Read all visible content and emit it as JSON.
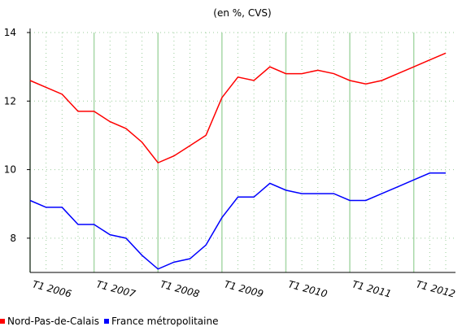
{
  "chart_data": {
    "type": "line",
    "title": "(en %, CVS)",
    "categories": [
      "T1 2006",
      null,
      null,
      null,
      "T1 2007",
      null,
      null,
      null,
      "T1 2008",
      null,
      null,
      null,
      "T1 2009",
      null,
      null,
      null,
      "T1 2010",
      null,
      null,
      null,
      "T1 2011",
      null,
      null,
      null,
      "T1 2012",
      null,
      null
    ],
    "series": [
      {
        "name": "Nord-Pas-de-Calais",
        "color": "#ff0000",
        "values": [
          12.6,
          12.4,
          12.2,
          11.7,
          11.7,
          11.4,
          11.2,
          10.8,
          10.2,
          10.4,
          10.7,
          11.0,
          12.1,
          12.7,
          12.6,
          13.0,
          12.8,
          12.8,
          12.9,
          12.8,
          12.6,
          12.5,
          12.6,
          12.8,
          13.0,
          13.2,
          13.4
        ]
      },
      {
        "name": "France métropolitaine",
        "color": "#0000ff",
        "values": [
          9.1,
          8.9,
          8.9,
          8.4,
          8.4,
          8.1,
          8.0,
          7.5,
          7.1,
          7.3,
          7.4,
          7.8,
          8.6,
          9.2,
          9.2,
          9.6,
          9.4,
          9.3,
          9.3,
          9.3,
          9.1,
          9.1,
          9.3,
          9.5,
          9.7,
          9.9,
          9.9
        ]
      }
    ],
    "ylim": [
      7,
      14
    ],
    "yticks": [
      8,
      10,
      12,
      14
    ],
    "grid": true
  }
}
